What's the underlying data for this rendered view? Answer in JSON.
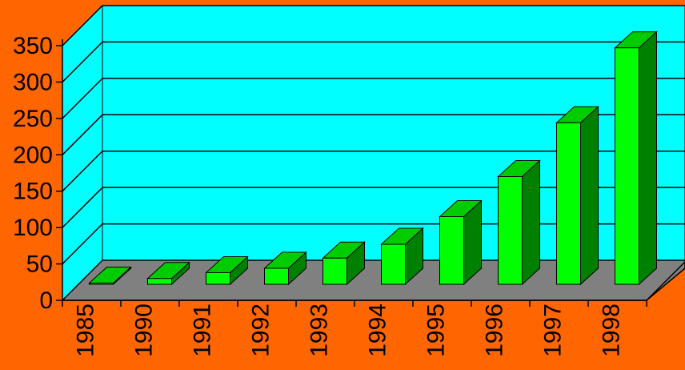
{
  "colors": {
    "background": "#ff6600",
    "back_wall": "#00ffff",
    "floor": "#808080",
    "bar_front": "#00ff00",
    "bar_top": "#00cc00",
    "bar_side": "#008000",
    "gridline": "#000000"
  },
  "chart_data": {
    "type": "bar",
    "three_d": true,
    "categories": [
      "1985",
      "1990",
      "1991",
      "1992",
      "1993",
      "1994",
      "1995",
      "1996",
      "1997",
      "1998"
    ],
    "values": [
      1,
      8,
      16,
      22,
      36,
      55,
      93,
      148,
      222,
      325
    ],
    "title": "",
    "xlabel": "",
    "ylabel": "",
    "ylim": [
      0,
      350
    ],
    "yticks": [
      0,
      50,
      100,
      150,
      200,
      250,
      300,
      350
    ],
    "grid": true,
    "legend": "none",
    "x_tick_rotation": "vertical"
  }
}
